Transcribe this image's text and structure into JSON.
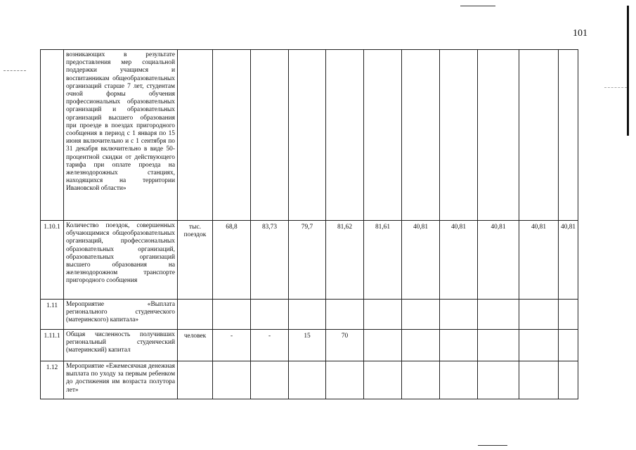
{
  "page_number": "101",
  "rows": [
    {
      "code": "",
      "description": "возникающих в результате предоставления мер социальной поддержки учащимся и воспитанникам общеобразовательных организаций старше 7 лет, студентам очной формы обучения профессиональных образовательных организаций и образовательных организаций высшего образования при проезде в поездах пригородного сообщения в период с 1 января по 15 июня включительно и с 1 сентября по 31 декабря включительно в виде 50-процентной скидки от действующего тарифа при оплате проезда на железнодорожных станциях, находящихся на территории Ивановской области»",
      "unit": "",
      "values": [
        "",
        "",
        "",
        "",
        "",
        "",
        "",
        "",
        "",
        ""
      ]
    },
    {
      "code": "1.10.1",
      "description": "Количество поездок, совершенных обучающимися общеобразовательных организаций, профессиональных образовательных организаций, образовательных организаций высшего образования на железнодорожном транспорте пригородного сообщения",
      "unit": "тыс. поездок",
      "values": [
        "68,8",
        "83,73",
        "79,7",
        "81,62",
        "81,61",
        "40,81",
        "40,81",
        "40,81",
        "40,81",
        "40,81"
      ]
    },
    {
      "code": "1.11",
      "description": "Мероприятие «Выплата регионального студенческого (материнского) капитала»",
      "unit": "",
      "values": [
        "",
        "",
        "",
        "",
        "",
        "",
        "",
        "",
        "",
        ""
      ]
    },
    {
      "code": "1.11.1",
      "description": "Общая численность получивших региональный студенческий (материнский) капитал",
      "unit": "человек",
      "values": [
        "-",
        "-",
        "15",
        "70",
        "",
        "",
        "",
        "",
        "",
        ""
      ]
    },
    {
      "code": "1.12",
      "description": "Мероприятие «Ежемесячная денежная выплата по уходу за первым ребенком до достижения им возраста полутора лет»",
      "unit": "",
      "values": [
        "",
        "",
        "",
        "",
        "",
        "",
        "",
        "",
        "",
        ""
      ]
    }
  ]
}
